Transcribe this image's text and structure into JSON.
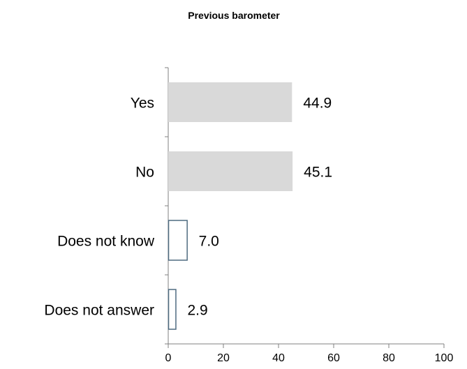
{
  "chart_data": {
    "type": "bar",
    "orientation": "horizontal",
    "title": "Previous barometer",
    "categories": [
      "Yes",
      "No",
      "Does not know",
      "Does not answer"
    ],
    "values": [
      44.9,
      45.1,
      7.0,
      2.9
    ],
    "value_labels": [
      "44.9",
      "45.1",
      "7.0",
      "2.9"
    ],
    "xlim": [
      0,
      100
    ],
    "xticks": [
      0,
      20,
      40,
      60,
      80,
      100
    ],
    "xlabel": "",
    "ylabel": "",
    "grid": false,
    "legend": "none",
    "bar_styles": [
      {
        "fill": "#d9d9d9",
        "stroke": "none"
      },
      {
        "fill": "#d9d9d9",
        "stroke": "none"
      },
      {
        "fill": "#ffffff",
        "stroke": "#4f6b80"
      },
      {
        "fill": "#ffffff",
        "stroke": "#4f6b80"
      }
    ]
  }
}
